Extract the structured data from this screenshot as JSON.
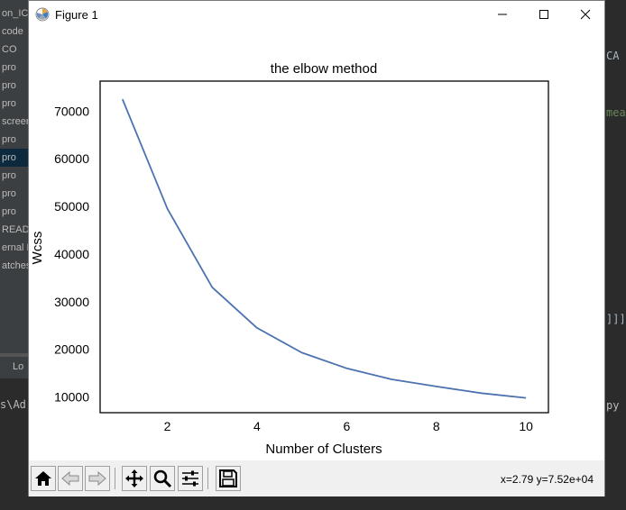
{
  "window": {
    "title": "Figure 1",
    "controls": [
      "minimize",
      "maximize",
      "close"
    ]
  },
  "background_ide": {
    "left_panel_items": [
      "on_IC",
      "code",
      "CO",
      "pro",
      "pro",
      "pro",
      "screen",
      "pro",
      "pro",
      "pro",
      "pro",
      "pro",
      "READ",
      "ernal L",
      "atches"
    ],
    "bottom_tab_label": "Lo",
    "terminal_text": "s\\Ad",
    "right_edge_texts": [
      "CA",
      "mea",
      "]]]",
      "py"
    ]
  },
  "chart_data": {
    "type": "line",
    "title": "the elbow method",
    "xlabel": "Number of Clusters",
    "ylabel": "Wcss",
    "x": [
      1,
      2,
      3,
      4,
      5,
      6,
      7,
      8,
      9,
      10
    ],
    "series": [
      {
        "values": [
          72500,
          49500,
          33000,
          24500,
          19300,
          16000,
          13700,
          12200,
          10800,
          9800
        ],
        "color": "#4c72b0"
      }
    ],
    "xlim": [
      0.5,
      10.5
    ],
    "ylim": [
      6700,
      76300
    ],
    "xticks": [
      2,
      4,
      6,
      8,
      10
    ],
    "yticks": [
      10000,
      20000,
      30000,
      40000,
      50000,
      60000,
      70000
    ],
    "grid": false,
    "legend": "none"
  },
  "toolbar": {
    "buttons": [
      "home-icon",
      "back-icon",
      "forward-icon",
      "pan-icon",
      "zoom-icon",
      "configure-subplots-icon",
      "save-icon"
    ],
    "coords_text": "x=2.79 y=7.52e+04"
  }
}
